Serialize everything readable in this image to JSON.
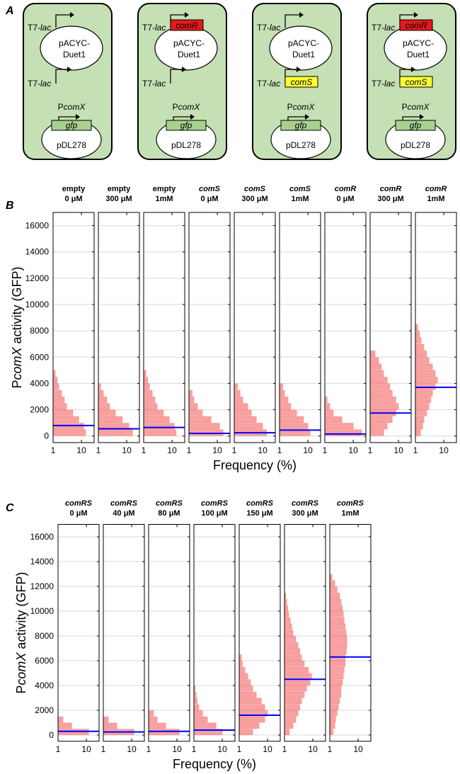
{
  "panel_a": {
    "label": "A",
    "cells": [
      {
        "top_promoter": [
          "T7-",
          "lac"
        ],
        "top_gene": null,
        "plasmid1": [
          "pACYC-",
          "Duet1"
        ],
        "bottom_promoter": [
          "T7-",
          "lac"
        ],
        "bottom_gene": null,
        "reporter_promoter": [
          "P",
          "comX"
        ],
        "reporter_gene": "gfp",
        "plasmid2": "pDL278"
      },
      {
        "top_promoter": [
          "T7-",
          "lac"
        ],
        "top_gene": "comR",
        "plasmid1": [
          "pACYC-",
          "Duet1"
        ],
        "bottom_promoter": [
          "T7-",
          "lac"
        ],
        "bottom_gene": null,
        "reporter_promoter": [
          "P",
          "comX"
        ],
        "reporter_gene": "gfp",
        "plasmid2": "pDL278"
      },
      {
        "top_promoter": [
          "T7-",
          "lac"
        ],
        "top_gene": null,
        "plasmid1": [
          "pACYC-",
          "Duet1"
        ],
        "bottom_promoter": [
          "T7-",
          "lac"
        ],
        "bottom_gene": "comS",
        "reporter_promoter": [
          "P",
          "comX"
        ],
        "reporter_gene": "gfp",
        "plasmid2": "pDL278"
      },
      {
        "top_promoter": [
          "T7-",
          "lac"
        ],
        "top_gene": "comR",
        "plasmid1": [
          "pACYC-",
          "Duet1"
        ],
        "bottom_promoter": [
          "T7-",
          "lac"
        ],
        "bottom_gene": "comS",
        "reporter_promoter": [
          "P",
          "comX"
        ],
        "reporter_gene": "gfp",
        "plasmid2": "pDL278"
      }
    ]
  },
  "panel_b": {
    "label": "B",
    "y_label": [
      "P",
      "comX",
      " activity (GFP)"
    ],
    "x_label": "Frequency (%)",
    "ylim": [
      -500,
      17000
    ],
    "yticks": [
      0,
      2000,
      4000,
      6000,
      8000,
      10000,
      12000,
      14000,
      16000
    ],
    "xlim": [
      1,
      28
    ],
    "xticks": [
      1,
      10
    ],
    "log_x": true,
    "grid": true,
    "bar_color": "#f7a1a1",
    "median_color": "#0000ff",
    "bins": [
      0,
      500,
      1000,
      1500,
      2000,
      2500,
      3000,
      3500,
      4000,
      4500,
      5000,
      5500,
      6000,
      6500,
      7000,
      7500,
      8000,
      8500,
      9000
    ],
    "subplots": [
      {
        "title": [
          "empty",
          "0 μM"
        ],
        "title_italic": false,
        "counts": [
          14,
          12,
          8,
          5,
          3,
          2.5,
          2,
          1.6,
          1.4,
          1.2,
          0,
          0,
          0,
          0,
          0,
          0,
          0,
          0
        ],
        "median": 800
      },
      {
        "title": [
          "empty",
          "300 μM"
        ],
        "title_italic": false,
        "counts": [
          16,
          12,
          7,
          4,
          2.5,
          2,
          1.5,
          1.2,
          0,
          0,
          0,
          0,
          0,
          0,
          0,
          0,
          0,
          0
        ],
        "median": 550
      },
      {
        "title": [
          "empty",
          "1mM"
        ],
        "title_italic": false,
        "counts": [
          14,
          12,
          8,
          5,
          3,
          2.5,
          2,
          1.6,
          1.4,
          1.2,
          0,
          0,
          0,
          0,
          0,
          0,
          0,
          0
        ],
        "median": 650
      },
      {
        "title": [
          "comS",
          "0 μM"
        ],
        "title_italic": true,
        "counts": [
          16,
          12,
          6,
          3,
          2,
          1.5,
          1.3,
          0,
          0,
          0,
          0,
          0,
          0,
          0,
          0,
          0,
          0,
          0
        ],
        "median": 200
      },
      {
        "title": [
          "comS",
          "300 μM"
        ],
        "title_italic": true,
        "counts": [
          14,
          10,
          6,
          4,
          3,
          2,
          1.6,
          1.3,
          0,
          0,
          0,
          0,
          0,
          0,
          0,
          0,
          0,
          0
        ],
        "median": 250
      },
      {
        "title": [
          "comS",
          "1mM"
        ],
        "title_italic": true,
        "counts": [
          12,
          10,
          7,
          4,
          2.5,
          2,
          1.5,
          1.3,
          0,
          0,
          0,
          0,
          0,
          0,
          0,
          0,
          0,
          0
        ],
        "median": 450
      },
      {
        "title": [
          "comR",
          "0 μM"
        ],
        "title_italic": true,
        "counts": [
          20,
          10,
          4,
          2,
          1.5,
          1.2,
          0,
          0,
          0,
          0,
          0,
          0,
          0,
          0,
          0,
          0,
          0,
          0
        ],
        "median": 150
      },
      {
        "title": [
          "comR",
          "300 μM"
        ],
        "title_italic": true,
        "counts": [
          3,
          4,
          6,
          8,
          10,
          8,
          6,
          5,
          4,
          3,
          2.5,
          2,
          1.5,
          0,
          0,
          0,
          0,
          0
        ],
        "median": 1750
      },
      {
        "title": [
          "comR",
          "1mM"
        ],
        "title_italic": true,
        "counts": [
          1.5,
          1.8,
          2,
          2.5,
          3,
          3.5,
          4,
          5,
          6,
          5,
          4,
          3,
          2.5,
          2,
          1.6,
          1.4,
          1.2,
          0
        ],
        "median": 3700
      }
    ]
  },
  "panel_c": {
    "label": "C",
    "y_label": [
      "P",
      "comX",
      " activity (GFP)"
    ],
    "x_label": "Frequency (%)",
    "ylim": [
      -500,
      17000
    ],
    "yticks": [
      0,
      2000,
      4000,
      6000,
      8000,
      10000,
      12000,
      14000,
      16000
    ],
    "xlim": [
      1,
      28
    ],
    "xticks": [
      1,
      10
    ],
    "log_x": true,
    "grid": true,
    "bar_color": "#f7a1a1",
    "median_color": "#0000ff",
    "bins": [
      0,
      500,
      1000,
      1500,
      2000,
      2500,
      3000,
      3500,
      4000,
      4500,
      5000,
      5500,
      6000,
      6500,
      7000,
      7500,
      8000,
      8500,
      9000,
      9500,
      10000,
      10500,
      11000,
      11500,
      12000,
      12500,
      13000
    ],
    "subplots": [
      {
        "title": [
          "comRS",
          "0 μM"
        ],
        "title_italic": true,
        "counts": [
          12,
          3,
          1.5,
          0,
          0,
          0,
          0,
          0,
          0,
          0,
          0,
          0,
          0,
          0,
          0,
          0,
          0,
          0,
          0,
          0,
          0,
          0,
          0,
          0,
          0,
          0
        ],
        "median": 300
      },
      {
        "title": [
          "comRS",
          "40 μM"
        ],
        "title_italic": true,
        "counts": [
          12,
          3,
          1.5,
          0,
          0,
          0,
          0,
          0,
          0,
          0,
          0,
          0,
          0,
          0,
          0,
          0,
          0,
          0,
          0,
          0,
          0,
          0,
          0,
          0,
          0,
          0
        ],
        "median": 250
      },
      {
        "title": [
          "comRS",
          "80 μM"
        ],
        "title_italic": true,
        "counts": [
          12,
          4,
          2,
          1.5,
          0,
          0,
          0,
          0,
          0,
          0,
          0,
          0,
          0,
          0,
          0,
          0,
          0,
          0,
          0,
          0,
          0,
          0,
          0,
          0,
          0,
          0
        ],
        "median": 300
      },
      {
        "title": [
          "comRS",
          "100 μM"
        ],
        "title_italic": true,
        "counts": [
          10,
          6,
          3,
          2,
          1.5,
          1.3,
          1.2,
          1.1,
          0,
          0,
          0,
          0,
          0,
          0,
          0,
          0,
          0,
          0,
          0,
          0,
          0,
          0,
          0,
          0,
          0,
          0
        ],
        "median": 400
      },
      {
        "title": [
          "comRS",
          "150 μM"
        ],
        "title_italic": true,
        "counts": [
          3,
          5,
          8,
          10,
          8,
          6,
          4,
          3,
          2.5,
          2,
          1.6,
          1.3,
          1.2,
          0,
          0,
          0,
          0,
          0,
          0,
          0,
          0,
          0,
          0,
          0,
          0,
          0
        ],
        "median": 1600
      },
      {
        "title": [
          "comRS",
          "300 μM"
        ],
        "title_italic": true,
        "counts": [
          1.5,
          2,
          2.5,
          3,
          3.5,
          4,
          5,
          6,
          8,
          9,
          7,
          5,
          4,
          3.5,
          3,
          2.5,
          2,
          1.8,
          1.6,
          1.4,
          1.3,
          1.2,
          1.1,
          0,
          0,
          0
        ],
        "median": 4500
      },
      {
        "title": [
          "comRS",
          "1mM"
        ],
        "title_italic": true,
        "counts": [
          1.3,
          1.5,
          1.6,
          1.8,
          2,
          2.2,
          2.5,
          2.5,
          2.8,
          3,
          3.2,
          3.5,
          3.5,
          3.8,
          4,
          4,
          3.8,
          3.5,
          3.2,
          3,
          2.8,
          2.5,
          2.2,
          1.8,
          1.5,
          1.2
        ],
        "median": 6300
      }
    ]
  }
}
